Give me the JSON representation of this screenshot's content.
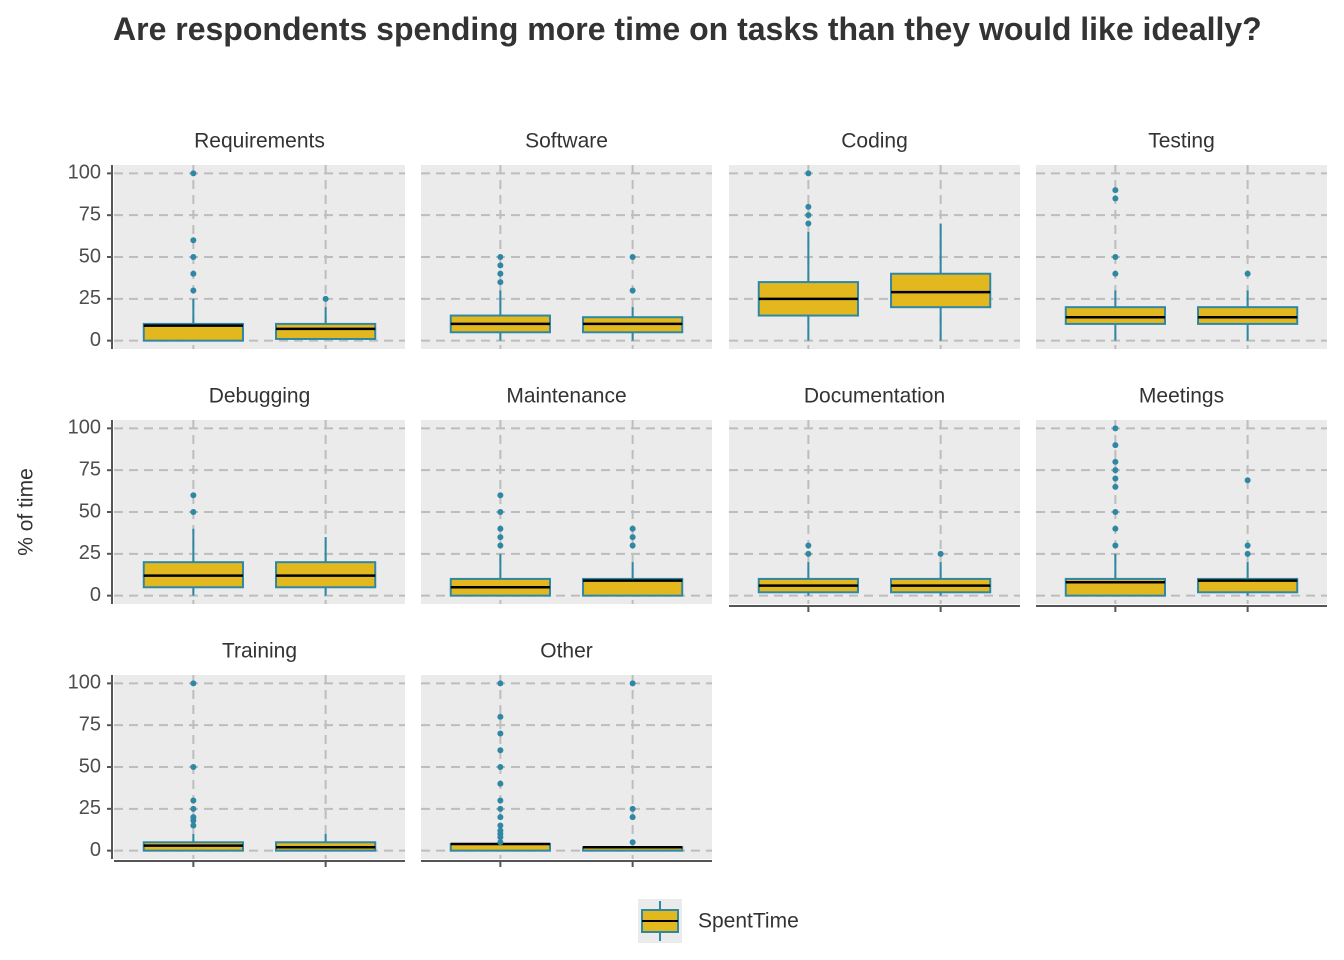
{
  "chart_data": {
    "type": "box",
    "title": "Are respondents spending more time on tasks than they would like ideally?",
    "y_label": "% of time",
    "series_name": "SpentTime",
    "fill": "#e3b81f",
    "stroke": "#2e87a3",
    "median_color": "#000000",
    "categories": [
      null,
      null
    ],
    "ylim": [
      -5,
      105
    ],
    "yticks": [
      0,
      25,
      50,
      75,
      100
    ],
    "grid": true,
    "facets": [
      {
        "title": "Requirements",
        "boxes": [
          {
            "min": 0,
            "q1": 0,
            "median": 9,
            "q3": 10,
            "max": 25,
            "outliers": [
              30,
              40,
              50,
              60,
              100
            ]
          },
          {
            "min": 1,
            "q1": 1,
            "median": 7,
            "q3": 10,
            "max": 20,
            "outliers": [
              25
            ]
          }
        ]
      },
      {
        "title": "Software",
        "boxes": [
          {
            "min": 0,
            "q1": 5,
            "median": 10,
            "q3": 15,
            "max": 30,
            "outliers": [
              35,
              40,
              45,
              50
            ]
          },
          {
            "min": 0,
            "q1": 5,
            "median": 10,
            "q3": 14,
            "max": 20,
            "outliers": [
              30,
              50
            ]
          }
        ]
      },
      {
        "title": "Coding",
        "boxes": [
          {
            "min": 0,
            "q1": 15,
            "median": 25,
            "q3": 35,
            "max": 65,
            "outliers": [
              70,
              75,
              80,
              100
            ]
          },
          {
            "min": 0,
            "q1": 20,
            "median": 29,
            "q3": 40,
            "max": 70,
            "outliers": []
          }
        ]
      },
      {
        "title": "Testing",
        "boxes": [
          {
            "min": 0,
            "q1": 10,
            "median": 14,
            "q3": 20,
            "max": 30,
            "outliers": [
              40,
              50,
              85,
              90
            ]
          },
          {
            "min": 0,
            "q1": 10,
            "median": 14,
            "q3": 20,
            "max": 30,
            "outliers": [
              40
            ]
          }
        ]
      },
      {
        "title": "Debugging",
        "boxes": [
          {
            "min": 0,
            "q1": 5,
            "median": 12,
            "q3": 20,
            "max": 40,
            "outliers": [
              50,
              60
            ]
          },
          {
            "min": 0,
            "q1": 5,
            "median": 12,
            "q3": 20,
            "max": 35,
            "outliers": []
          }
        ]
      },
      {
        "title": "Maintenance",
        "boxes": [
          {
            "min": 0,
            "q1": 0,
            "median": 5,
            "q3": 10,
            "max": 25,
            "outliers": [
              30,
              35,
              40,
              50,
              60
            ]
          },
          {
            "min": 0,
            "q1": 0,
            "median": 9,
            "q3": 10,
            "max": 20,
            "outliers": [
              30,
              35,
              40
            ]
          }
        ]
      },
      {
        "title": "Documentation",
        "boxes": [
          {
            "min": 0,
            "q1": 2,
            "median": 6,
            "q3": 10,
            "max": 20,
            "outliers": [
              25,
              30
            ]
          },
          {
            "min": 0,
            "q1": 2,
            "median": 6,
            "q3": 10,
            "max": 20,
            "outliers": [
              25
            ]
          }
        ]
      },
      {
        "title": "Meetings",
        "boxes": [
          {
            "min": 0,
            "q1": 0,
            "median": 8,
            "q3": 10,
            "max": 25,
            "outliers": [
              30,
              40,
              50,
              65,
              70,
              75,
              80,
              90,
              100
            ]
          },
          {
            "min": 0,
            "q1": 2,
            "median": 9,
            "q3": 10,
            "max": 20,
            "outliers": [
              25,
              30,
              69
            ]
          }
        ]
      },
      {
        "title": "Training",
        "boxes": [
          {
            "min": 0,
            "q1": 0,
            "median": 3,
            "q3": 5,
            "max": 10,
            "outliers": [
              15,
              18,
              20,
              25,
              30,
              50,
              100
            ]
          },
          {
            "min": 0,
            "q1": 0,
            "median": 2,
            "q3": 5,
            "max": 10,
            "outliers": []
          }
        ]
      },
      {
        "title": "Other",
        "boxes": [
          {
            "min": 0,
            "q1": 0,
            "median": 4,
            "q3": 4,
            "max": 4,
            "outliers": [
              5,
              8,
              10,
              12,
              15,
              20,
              25,
              30,
              40,
              50,
              60,
              70,
              80,
              100
            ]
          },
          {
            "min": 0,
            "q1": 0,
            "median": 2,
            "q3": 2,
            "max": 2,
            "outliers": [
              5,
              20,
              25,
              100
            ]
          }
        ]
      }
    ]
  }
}
